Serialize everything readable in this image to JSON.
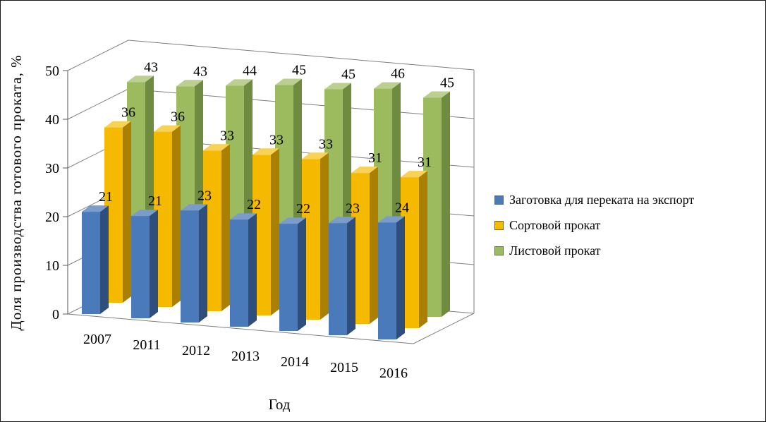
{
  "page": {
    "background": "#ffffff",
    "border_color": "#1a1a1a"
  },
  "chart_data": {
    "type": "bar",
    "projection": "3d-column",
    "title": "",
    "xlabel": "Год",
    "ylabel": "Доля производства готового проката, %",
    "categories": [
      "2007",
      "2011",
      "2012",
      "2013",
      "2014",
      "2015",
      "2016"
    ],
    "series": [
      {
        "name": "Заготовка для переката на экспорт",
        "color": "#4a7aba",
        "side": "#2e4e7e",
        "top": "#7b9cc9",
        "values": [
          21,
          21,
          23,
          22,
          22,
          23,
          24
        ]
      },
      {
        "name": "Сортовой прокат",
        "color": "#f5ba00",
        "side": "#ab8000",
        "top": "#f8d157",
        "values": [
          36,
          36,
          33,
          33,
          33,
          31,
          31
        ]
      },
      {
        "name": "Листовой прокат",
        "color": "#9cba5e",
        "side": "#6f8b3f",
        "top": "#bccf90",
        "values": [
          43,
          43,
          44,
          45,
          45,
          46,
          45
        ]
      }
    ],
    "ylim": [
      0,
      50
    ],
    "yticks": [
      0,
      10,
      20,
      30,
      40,
      50
    ],
    "grid": true,
    "gridline_color": "#7f7f7f",
    "axis_color": "#595959",
    "value_labels": true,
    "legend_position": "right"
  }
}
